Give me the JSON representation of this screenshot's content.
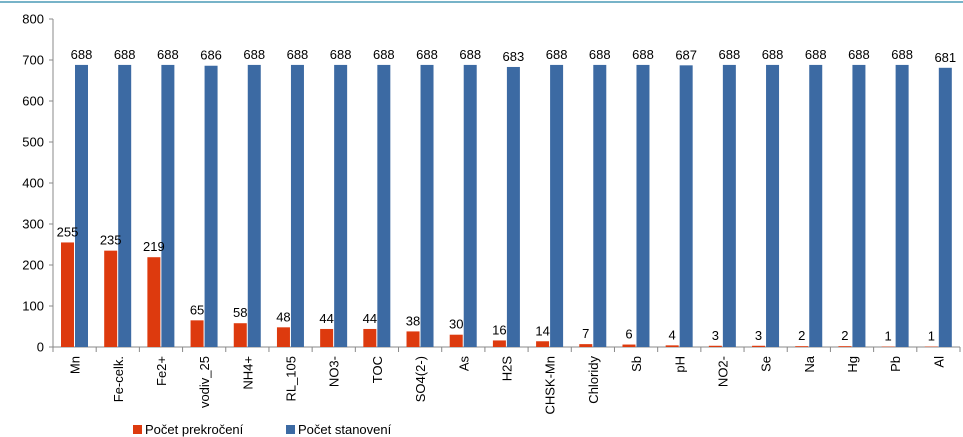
{
  "chart_data": {
    "type": "bar",
    "categories": [
      "Mn",
      "Fe-celk.",
      "Fe2+",
      "vodiv_25",
      "NH4+",
      "RL_105",
      "NO3-",
      "TOC",
      "SO4(2-)",
      "As",
      "H2S",
      "CHSK-Mn",
      "Chloridy",
      "Sb",
      "pH",
      "NO2-",
      "Se",
      "Na",
      "Hg",
      "Pb",
      "Al"
    ],
    "series": [
      {
        "name": "Počet prekročení",
        "color": "#dd3a0e",
        "values": [
          255,
          235,
          219,
          65,
          58,
          48,
          44,
          44,
          38,
          30,
          16,
          14,
          7,
          6,
          4,
          3,
          3,
          2,
          2,
          1,
          1
        ]
      },
      {
        "name": "Počet stanovení",
        "color": "#3c6aa3",
        "values": [
          688,
          688,
          688,
          686,
          688,
          688,
          688,
          688,
          688,
          688,
          683,
          688,
          688,
          688,
          687,
          688,
          688,
          688,
          688,
          688,
          681
        ]
      }
    ],
    "ylim": [
      0,
      800
    ],
    "yticks": [
      "0",
      "100",
      "200",
      "300",
      "400",
      "500",
      "600",
      "700",
      "800"
    ],
    "grid": false,
    "legend_position": "bottom-left",
    "frame_color": "#4a9ab5"
  }
}
